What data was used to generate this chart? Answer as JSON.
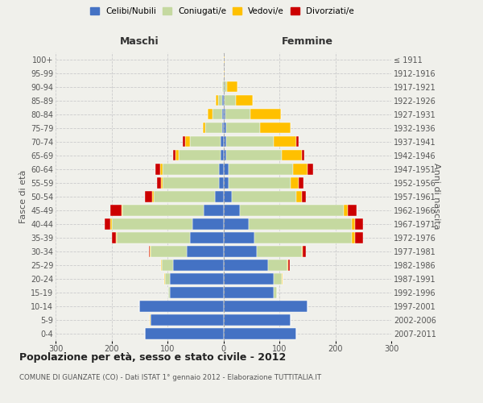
{
  "age_groups": [
    "0-4",
    "5-9",
    "10-14",
    "15-19",
    "20-24",
    "25-29",
    "30-34",
    "35-39",
    "40-44",
    "45-49",
    "50-54",
    "55-59",
    "60-64",
    "65-69",
    "70-74",
    "75-79",
    "80-84",
    "85-89",
    "90-94",
    "95-99",
    "100+"
  ],
  "birth_years": [
    "2007-2011",
    "2002-2006",
    "1997-2001",
    "1992-1996",
    "1987-1991",
    "1982-1986",
    "1977-1981",
    "1972-1976",
    "1967-1971",
    "1962-1966",
    "1957-1961",
    "1952-1956",
    "1947-1951",
    "1942-1946",
    "1937-1941",
    "1932-1936",
    "1927-1931",
    "1922-1926",
    "1917-1921",
    "1912-1916",
    "≤ 1911"
  ],
  "maschi_celibe": [
    140,
    130,
    150,
    95,
    95,
    90,
    65,
    60,
    55,
    35,
    15,
    8,
    8,
    5,
    5,
    2,
    2,
    2,
    0,
    0,
    0
  ],
  "maschi_coniugato": [
    0,
    0,
    0,
    3,
    10,
    20,
    65,
    130,
    145,
    145,
    110,
    100,
    100,
    75,
    55,
    30,
    18,
    8,
    2,
    0,
    0
  ],
  "maschi_vedovo": [
    0,
    1,
    0,
    0,
    1,
    1,
    1,
    2,
    2,
    2,
    3,
    3,
    5,
    5,
    8,
    5,
    8,
    3,
    0,
    0,
    0
  ],
  "maschi_divorziato": [
    0,
    0,
    0,
    0,
    0,
    1,
    2,
    8,
    10,
    20,
    12,
    8,
    8,
    5,
    5,
    0,
    0,
    0,
    0,
    0,
    0
  ],
  "femmine_nubile": [
    130,
    120,
    150,
    90,
    90,
    80,
    60,
    55,
    45,
    30,
    15,
    10,
    10,
    5,
    5,
    5,
    3,
    2,
    2,
    0,
    0
  ],
  "femmine_coniugata": [
    0,
    0,
    0,
    5,
    15,
    35,
    80,
    175,
    185,
    185,
    115,
    110,
    115,
    100,
    85,
    60,
    45,
    20,
    5,
    0,
    0
  ],
  "femmine_vedova": [
    0,
    0,
    0,
    0,
    1,
    1,
    2,
    5,
    5,
    8,
    10,
    15,
    25,
    35,
    40,
    55,
    55,
    30,
    18,
    2,
    2
  ],
  "femmine_divorziata": [
    0,
    0,
    0,
    0,
    0,
    2,
    5,
    15,
    15,
    15,
    8,
    8,
    10,
    5,
    5,
    0,
    0,
    0,
    0,
    0,
    0
  ],
  "color_celibe": "#4472c4",
  "color_coniugato": "#c5d9a0",
  "color_vedovo": "#ffc000",
  "color_divorziato": "#cc0000",
  "legend_labels": [
    "Celibi/Nubili",
    "Coniugati/e",
    "Vedovi/e",
    "Divorziati/e"
  ],
  "label_maschi": "Maschi",
  "label_femmine": "Femmine",
  "ylabel_left": "Fasce di età",
  "ylabel_right": "Anni di nascita",
  "title": "Popolazione per età, sesso e stato civile - 2012",
  "subtitle": "COMUNE DI GUANZATE (CO) - Dati ISTAT 1° gennaio 2012 - Elaborazione TUTTITALIA.IT",
  "xlim": 300,
  "bg_color": "#f0f0eb",
  "bar_height": 0.8
}
